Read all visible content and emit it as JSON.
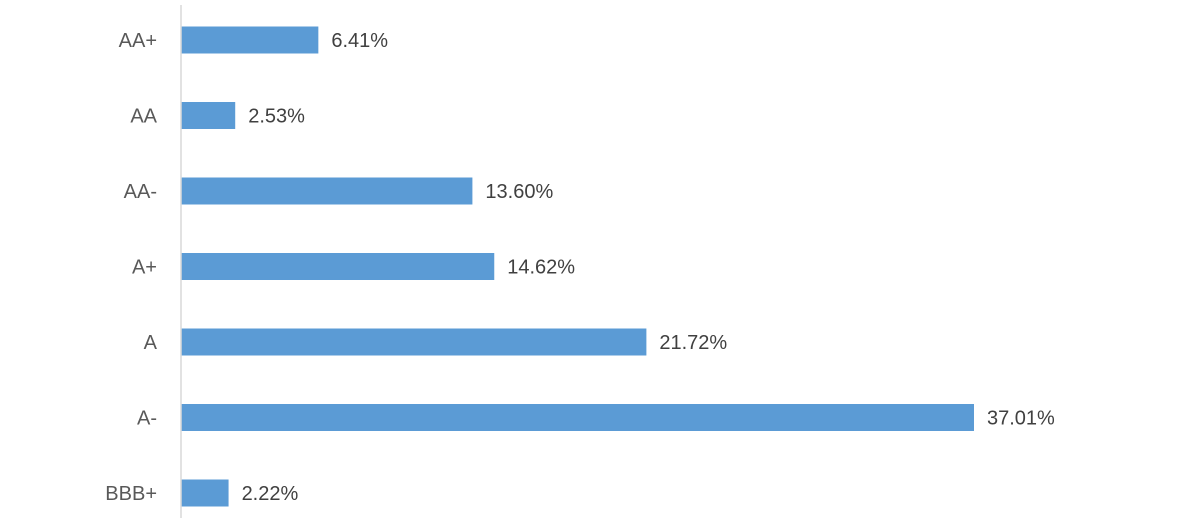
{
  "chart_data": {
    "type": "bar",
    "orientation": "horizontal",
    "categories": [
      "AA+",
      "AA",
      "AA-",
      "A+",
      "A",
      "A-",
      "BBB+"
    ],
    "values": [
      6.41,
      2.53,
      13.6,
      14.62,
      21.72,
      37.01,
      2.22
    ],
    "data_labels": [
      "6.41%",
      "2.53%",
      "13.60%",
      "14.62%",
      "21.72%",
      "37.01%",
      "2.22%"
    ],
    "xlim": [
      0,
      40
    ],
    "grid": false,
    "legend": "none",
    "bar_color": "#5B9BD5",
    "axis_color": "#D9D9D9"
  }
}
